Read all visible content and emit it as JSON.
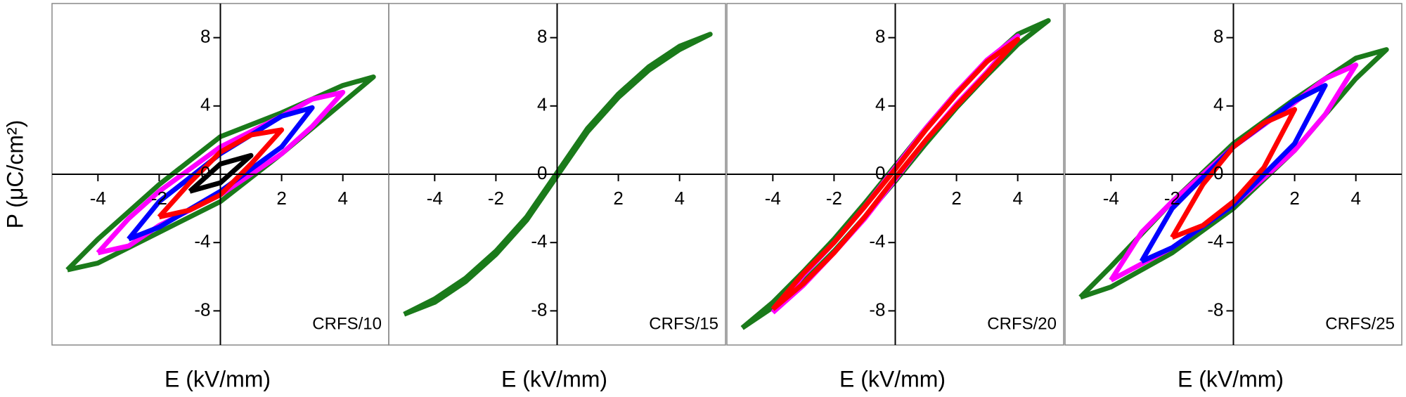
{
  "chart_data": [
    {
      "type": "line",
      "ylabel": "P (μC/cm²)",
      "xlabel": "E (kV/mm)",
      "annotation": "CRFS/10",
      "xlim": [
        -5.5,
        5.5
      ],
      "ylim": [
        -10,
        10
      ],
      "xticks": [
        -4,
        -2,
        2,
        4
      ],
      "yticks": [
        -8,
        -4,
        0,
        4,
        8
      ],
      "series": [
        {
          "color": "#1a7a1a",
          "x": [
            -5,
            -4,
            -2,
            0,
            2,
            4,
            5,
            4,
            2,
            0,
            -2,
            -4,
            -5
          ],
          "values": [
            -5.6,
            -5.2,
            -3.4,
            -1.6,
            1.2,
            4.2,
            5.7,
            5.2,
            3.6,
            2.2,
            -0.6,
            -3.8,
            -5.6
          ]
        },
        {
          "color": "#ff00ff",
          "x": [
            -4,
            -3,
            -2,
            0,
            2,
            3,
            4,
            3,
            2,
            0,
            -2,
            -3,
            -4
          ],
          "values": [
            -4.6,
            -4.2,
            -3.0,
            -1.2,
            1.2,
            2.8,
            4.8,
            4.4,
            3.4,
            1.6,
            -1.0,
            -2.6,
            -4.6
          ]
        },
        {
          "color": "#0000ff",
          "x": [
            -3,
            -2,
            0,
            2,
            3,
            2,
            0,
            -2,
            -3
          ],
          "values": [
            -3.8,
            -3.1,
            -1.0,
            1.6,
            3.9,
            3.4,
            1.2,
            -1.6,
            -3.8
          ]
        },
        {
          "color": "#ff0000",
          "x": [
            -2,
            -1,
            0,
            1,
            2,
            1,
            0,
            -1,
            -2
          ],
          "values": [
            -2.5,
            -2.1,
            -1.2,
            0.6,
            2.6,
            2.3,
            1.3,
            -0.5,
            -2.5
          ]
        },
        {
          "color": "#000000",
          "x": [
            -1,
            0,
            1,
            0,
            -1
          ],
          "values": [
            -1.0,
            -0.5,
            1.1,
            0.6,
            -1.0
          ]
        }
      ]
    },
    {
      "type": "line",
      "xlabel": "E (kV/mm)",
      "annotation": "CRFS/15",
      "xlim": [
        -5.5,
        5.5
      ],
      "ylim": [
        -10,
        10
      ],
      "xticks": [
        -4,
        -2,
        2,
        4
      ],
      "yticks": [
        -8,
        -4,
        0,
        4,
        8
      ],
      "series": [
        {
          "color": "#1a7a1a",
          "x": [
            -5,
            -4,
            -3,
            -2,
            -1,
            0,
            1,
            2,
            3,
            4,
            5,
            4,
            3,
            2,
            1,
            0,
            -1,
            -2,
            -3,
            -4,
            -5
          ],
          "values": [
            -8.2,
            -7.5,
            -6.3,
            -4.7,
            -2.7,
            -0.1,
            2.5,
            4.5,
            6.1,
            7.3,
            8.2,
            7.5,
            6.3,
            4.7,
            2.7,
            0.1,
            -2.5,
            -4.5,
            -6.1,
            -7.3,
            -8.2
          ]
        }
      ]
    },
    {
      "type": "line",
      "xlabel": "E (kV/mm)",
      "annotation": "CRFS/20",
      "xlim": [
        -5.5,
        5.5
      ],
      "ylim": [
        -10,
        10
      ],
      "xticks": [
        -4,
        -2,
        2,
        4
      ],
      "yticks": [
        -8,
        -4,
        0,
        4,
        8
      ],
      "series": [
        {
          "color": "#1a7a1a",
          "x": [
            -5,
            -4,
            -3,
            -2,
            -1,
            0,
            1,
            2,
            3,
            4,
            5,
            4,
            3,
            2,
            1,
            0,
            -1,
            -2,
            -3,
            -4,
            -5
          ],
          "values": [
            -9,
            -7.8,
            -6.3,
            -4.5,
            -2.5,
            -0.4,
            1.8,
            3.9,
            5.8,
            7.6,
            9,
            8.2,
            6.6,
            4.8,
            2.7,
            0.5,
            -1.7,
            -3.8,
            -5.7,
            -7.5,
            -9
          ]
        },
        {
          "color": "#ff00ff",
          "x": [
            -4,
            -3,
            -2,
            -1,
            0,
            1,
            2,
            3,
            4,
            3,
            2,
            1,
            0,
            -1,
            -2,
            -3,
            -4
          ],
          "values": [
            -8.1,
            -6.5,
            -4.6,
            -2.6,
            -0.3,
            2.0,
            4.1,
            6.0,
            8.1,
            6.7,
            4.8,
            2.7,
            0.4,
            -1.9,
            -4.0,
            -5.9,
            -8.1
          ]
        },
        {
          "color": "#ff0000",
          "x": [
            -4,
            -3,
            -2,
            -1,
            0,
            1,
            2,
            3,
            4,
            3,
            2,
            1,
            0,
            -1,
            -2,
            -3,
            -4
          ],
          "values": [
            -7.9,
            -6.4,
            -4.6,
            -2.5,
            -0.2,
            2.0,
            4.0,
            5.9,
            7.9,
            6.6,
            4.7,
            2.6,
            0.3,
            -1.9,
            -4.0,
            -5.8,
            -7.9
          ]
        }
      ]
    },
    {
      "type": "line",
      "xlabel": "E (kV/mm)",
      "annotation": "CRFS/25",
      "xlim": [
        -5.5,
        5.5
      ],
      "ylim": [
        -10,
        10
      ],
      "xticks": [
        -4,
        -2,
        2,
        4
      ],
      "yticks": [
        -8,
        -4,
        0,
        4,
        8
      ],
      "series": [
        {
          "color": "#1a7a1a",
          "x": [
            -5,
            -4,
            -2,
            0,
            2,
            4,
            5,
            4,
            2,
            0,
            -2,
            -4,
            -5
          ],
          "values": [
            -7.2,
            -6.6,
            -4.6,
            -2.0,
            1.4,
            5.6,
            7.3,
            6.8,
            4.4,
            1.8,
            -1.6,
            -5.4,
            -7.2
          ]
        },
        {
          "color": "#ff00ff",
          "x": [
            -4,
            -2,
            0,
            2,
            3,
            4,
            3,
            2,
            0,
            -2,
            -3,
            -4
          ],
          "values": [
            -6.2,
            -4.3,
            -1.8,
            1.4,
            3.5,
            6.4,
            5.6,
            4.2,
            1.6,
            -1.6,
            -3.4,
            -6.2
          ]
        },
        {
          "color": "#0000ff",
          "x": [
            -3,
            -2,
            0,
            2,
            3,
            2,
            0,
            -2,
            -3
          ],
          "values": [
            -5.1,
            -4.3,
            -1.8,
            1.8,
            5.2,
            4.3,
            1.6,
            -2.0,
            -5.1
          ]
        },
        {
          "color": "#ff0000",
          "x": [
            -2,
            -1,
            0,
            1,
            2,
            1,
            0,
            -1,
            -2
          ],
          "values": [
            -3.7,
            -3.0,
            -1.6,
            0.4,
            3.8,
            3.0,
            1.6,
            -0.6,
            -3.7
          ]
        }
      ]
    }
  ]
}
